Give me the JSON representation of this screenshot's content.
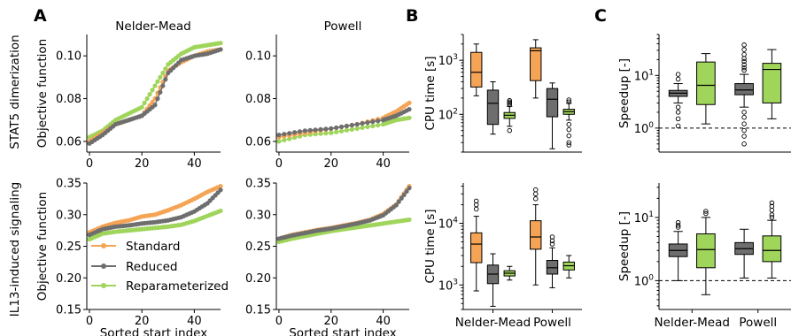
{
  "panel_letters": [
    "A",
    "B",
    "C"
  ],
  "row_labels": [
    "STAT5 dimerization",
    "IL13-induced signaling"
  ],
  "method_titles": [
    "Nelder-Mead",
    "Powell"
  ],
  "legend": [
    "Standard",
    "Reduced",
    "Reparameterized"
  ],
  "colors": {
    "Standard": "#f5a455",
    "Reduced": "#6e6e6e",
    "Reparameterized": "#9fd55a"
  },
  "chart_data": [
    {
      "id": "A-stat5-nm",
      "type": "scatter",
      "title": "Nelder-Mead",
      "xlabel": "",
      "ylabel": "Objective function",
      "xlim": [
        -1,
        50
      ],
      "ylim": [
        0.055,
        0.11
      ],
      "xticks": [
        "0",
        "20",
        "40"
      ],
      "yticks": [
        "0.06",
        "0.08",
        "0.10"
      ],
      "series": [
        {
          "name": "Standard",
          "x": [
            0,
            5,
            10,
            15,
            20,
            25,
            30,
            35,
            40,
            45,
            50
          ],
          "y": [
            0.06,
            0.064,
            0.068,
            0.07,
            0.072,
            0.08,
            0.093,
            0.097,
            0.1,
            0.102,
            0.103
          ]
        },
        {
          "name": "Reduced",
          "x": [
            0,
            5,
            10,
            15,
            20,
            25,
            30,
            35,
            40,
            45,
            50
          ],
          "y": [
            0.059,
            0.063,
            0.068,
            0.07,
            0.072,
            0.077,
            0.092,
            0.098,
            0.1,
            0.101,
            0.103
          ]
        },
        {
          "name": "Reparameterized",
          "x": [
            0,
            5,
            10,
            15,
            20,
            25,
            30,
            35,
            40,
            45,
            50
          ],
          "y": [
            0.062,
            0.065,
            0.07,
            0.073,
            0.076,
            0.086,
            0.096,
            0.101,
            0.104,
            0.105,
            0.106
          ]
        }
      ]
    },
    {
      "id": "A-stat5-pw",
      "type": "scatter",
      "title": "Powell",
      "xlabel": "",
      "ylabel": "",
      "xlim": [
        -1,
        50
      ],
      "ylim": [
        0.055,
        0.11
      ],
      "xticks": [
        "0",
        "20",
        "40"
      ],
      "yticks": [
        "0.06",
        "0.08",
        "0.10"
      ],
      "series": [
        {
          "name": "Standard",
          "x": [
            0,
            10,
            20,
            30,
            40,
            45,
            50
          ],
          "y": [
            0.062,
            0.064,
            0.066,
            0.068,
            0.071,
            0.074,
            0.078
          ]
        },
        {
          "name": "Reduced",
          "x": [
            0,
            10,
            20,
            30,
            40,
            45,
            50
          ],
          "y": [
            0.063,
            0.065,
            0.066,
            0.068,
            0.07,
            0.072,
            0.075
          ]
        },
        {
          "name": "Reparameterized",
          "x": [
            0,
            10,
            20,
            30,
            40,
            45,
            50
          ],
          "y": [
            0.06,
            0.063,
            0.064,
            0.066,
            0.068,
            0.07,
            0.071
          ]
        }
      ]
    },
    {
      "id": "A-il13-nm",
      "type": "scatter",
      "title": "",
      "xlabel": "Sorted start index",
      "ylabel": "Objective function",
      "xlim": [
        -1,
        50
      ],
      "ylim": [
        0.15,
        0.35
      ],
      "xticks": [
        "0",
        "20",
        "40"
      ],
      "yticks": [
        "0.15",
        "0.20",
        "0.25",
        "0.30",
        "0.35"
      ],
      "series": [
        {
          "name": "Standard",
          "x": [
            0,
            5,
            10,
            15,
            20,
            25,
            30,
            35,
            40,
            45,
            50
          ],
          "y": [
            0.272,
            0.281,
            0.287,
            0.291,
            0.297,
            0.3,
            0.307,
            0.315,
            0.325,
            0.336,
            0.345
          ]
        },
        {
          "name": "Reduced",
          "x": [
            0,
            5,
            10,
            15,
            20,
            25,
            30,
            35,
            40,
            45,
            50
          ],
          "y": [
            0.268,
            0.277,
            0.281,
            0.283,
            0.286,
            0.288,
            0.291,
            0.296,
            0.305,
            0.318,
            0.339
          ]
        },
        {
          "name": "Reparameterized",
          "x": [
            0,
            5,
            10,
            15,
            20,
            25,
            30,
            35,
            40,
            45,
            50
          ],
          "y": [
            0.261,
            0.27,
            0.273,
            0.275,
            0.277,
            0.279,
            0.281,
            0.284,
            0.29,
            0.298,
            0.306
          ]
        }
      ]
    },
    {
      "id": "A-il13-pw",
      "type": "scatter",
      "title": "",
      "xlabel": "Sorted start index",
      "ylabel": "",
      "xlim": [
        -1,
        50
      ],
      "ylim": [
        0.15,
        0.35
      ],
      "xticks": [
        "0",
        "20",
        "40"
      ],
      "yticks": [
        "0.15",
        "0.20",
        "0.25",
        "0.30",
        "0.35"
      ],
      "series": [
        {
          "name": "Standard",
          "x": [
            0,
            5,
            10,
            15,
            20,
            25,
            30,
            35,
            40,
            45,
            50
          ],
          "y": [
            0.262,
            0.268,
            0.272,
            0.276,
            0.279,
            0.283,
            0.287,
            0.292,
            0.301,
            0.316,
            0.345
          ]
        },
        {
          "name": "Reduced",
          "x": [
            0,
            5,
            10,
            15,
            20,
            25,
            30,
            35,
            40,
            45,
            50
          ],
          "y": [
            0.262,
            0.267,
            0.271,
            0.275,
            0.278,
            0.282,
            0.286,
            0.291,
            0.299,
            0.315,
            0.342
          ]
        },
        {
          "name": "Reparameterized",
          "x": [
            0,
            5,
            10,
            15,
            20,
            25,
            30,
            35,
            40,
            45,
            50
          ],
          "y": [
            0.257,
            0.262,
            0.266,
            0.27,
            0.274,
            0.277,
            0.28,
            0.283,
            0.286,
            0.289,
            0.292
          ]
        }
      ]
    },
    {
      "id": "B-stat5",
      "type": "boxplot",
      "ylabel": "CPU time [s]",
      "yscale": "log",
      "ylim": [
        20,
        3000
      ],
      "yticks": [
        100,
        1000
      ],
      "categories": [
        "Nelder-Mead",
        "Powell"
      ],
      "groups": [
        {
          "category": "Nelder-Mead",
          "boxes": [
            {
              "name": "Standard",
              "whislo": 220,
              "q1": 320,
              "median": 600,
              "q3": 1400,
              "whishi": 2000,
              "fliers": []
            },
            {
              "name": "Reduced",
              "whislo": 43,
              "q1": 65,
              "median": 160,
              "q3": 280,
              "whishi": 400,
              "fliers": []
            },
            {
              "name": "Reparameterized",
              "whislo": 60,
              "q1": 84,
              "median": 96,
              "q3": 108,
              "whishi": 140,
              "fliers": [
                50,
                150,
                160,
                170,
                180
              ]
            }
          ]
        },
        {
          "category": "Powell",
          "boxes": [
            {
              "name": "Standard",
              "whislo": 200,
              "q1": 420,
              "median": 1500,
              "q3": 1700,
              "whishi": 2400,
              "fliers": []
            },
            {
              "name": "Reduced",
              "whislo": 23,
              "q1": 90,
              "median": 190,
              "q3": 300,
              "whishi": 380,
              "fliers": []
            },
            {
              "name": "Reparameterized",
              "whislo": 78,
              "q1": 100,
              "median": 112,
              "q3": 124,
              "whishi": 160,
              "fliers": [
                27,
                30,
                40,
                52,
                65,
                170,
                185
              ]
            }
          ]
        }
      ]
    },
    {
      "id": "B-il13",
      "type": "boxplot",
      "ylabel": "CPU time [s]",
      "yscale": "log",
      "ylim": [
        400,
        45000
      ],
      "yticks": [
        1000,
        10000
      ],
      "categories": [
        "Nelder-Mead",
        "Powell"
      ],
      "groups": [
        {
          "category": "Nelder-Mead",
          "boxes": [
            {
              "name": "Standard",
              "whislo": 800,
              "q1": 2300,
              "median": 4600,
              "q3": 7000,
              "whishi": 13000,
              "fliers": [
                17000,
                20000,
                23000
              ]
            },
            {
              "name": "Reduced",
              "whislo": 450,
              "q1": 1050,
              "median": 1500,
              "q3": 2100,
              "whishi": 3200,
              "fliers": []
            },
            {
              "name": "Reparameterized",
              "whislo": 1200,
              "q1": 1400,
              "median": 1550,
              "q3": 1700,
              "whishi": 2000,
              "fliers": []
            }
          ]
        },
        {
          "category": "Powell",
          "boxes": [
            {
              "name": "Standard",
              "whislo": 1000,
              "q1": 3800,
              "median": 6000,
              "q3": 11000,
              "whishi": 20000,
              "fliers": [
                25000,
                30000,
                35000
              ]
            },
            {
              "name": "Reduced",
              "whislo": 900,
              "q1": 1500,
              "median": 1900,
              "q3": 2500,
              "whishi": 4000,
              "fliers": [
                4600,
                5200,
                6000
              ]
            },
            {
              "name": "Reparameterized",
              "whislo": 1300,
              "q1": 1750,
              "median": 2050,
              "q3": 2350,
              "whishi": 3000,
              "fliers": []
            }
          ]
        }
      ]
    },
    {
      "id": "C-stat5",
      "type": "boxplot",
      "ylabel": "Speedup [-]",
      "yscale": "log",
      "ylim": [
        0.35,
        60
      ],
      "yticks": [
        1,
        10
      ],
      "hline": 1,
      "categories": [
        "Nelder-Mead",
        "Powell"
      ],
      "groups": [
        {
          "category": "Nelder-Mead",
          "boxes": [
            {
              "name": "Reduced",
              "whislo": 3.0,
              "q1": 4.0,
              "median": 4.6,
              "q3": 5.2,
              "whishi": 7.0,
              "fliers": [
                1.1,
                1.5,
                2.0,
                2.5,
                8.5,
                10.5
              ]
            },
            {
              "name": "Reparameterized",
              "whislo": 1.2,
              "q1": 2.8,
              "median": 6.5,
              "q3": 18,
              "whishi": 26,
              "fliers": []
            }
          ]
        },
        {
          "category": "Powell",
          "boxes": [
            {
              "name": "Reduced",
              "whislo": 2.5,
              "q1": 4.3,
              "median": 5.3,
              "q3": 7.0,
              "whishi": 10.5,
              "fliers": [
                0.5,
                0.7,
                0.9,
                1.2,
                1.6,
                2.0,
                12.5,
                14,
                16,
                18.5,
                21,
                25,
                31,
                38
              ]
            },
            {
              "name": "Reparameterized",
              "whislo": 1.5,
              "q1": 3.0,
              "median": 13,
              "q3": 17,
              "whishi": 31,
              "fliers": []
            }
          ]
        }
      ]
    },
    {
      "id": "C-il13",
      "type": "boxplot",
      "ylabel": "Speedup [-]",
      "yscale": "log",
      "ylim": [
        0.35,
        35
      ],
      "yticks": [
        1,
        10
      ],
      "hline": 1,
      "xtick_labels": [
        "Nelder-Mead",
        "Powell"
      ],
      "categories": [
        "Nelder-Mead",
        "Powell"
      ],
      "groups": [
        {
          "category": "Nelder-Mead",
          "boxes": [
            {
              "name": "Reduced",
              "whislo": 1.0,
              "q1": 2.4,
              "median": 3.0,
              "q3": 3.8,
              "whishi": 6.0,
              "fliers": [
                7.0,
                7.5,
                8.3
              ]
            },
            {
              "name": "Reparameterized",
              "whislo": 0.6,
              "q1": 1.6,
              "median": 3.1,
              "q3": 5.5,
              "whishi": 10,
              "fliers": [
                11.5,
                12.5
              ]
            }
          ]
        },
        {
          "category": "Powell",
          "boxes": [
            {
              "name": "Reduced",
              "whislo": 1.1,
              "q1": 2.6,
              "median": 3.2,
              "q3": 4.0,
              "whishi": 6.5,
              "fliers": []
            },
            {
              "name": "Reparameterized",
              "whislo": 1.1,
              "q1": 2.0,
              "median": 3.0,
              "q3": 5.1,
              "whishi": 9,
              "fliers": [
                10,
                11,
                13,
                15,
                17
              ]
            }
          ]
        }
      ]
    }
  ]
}
